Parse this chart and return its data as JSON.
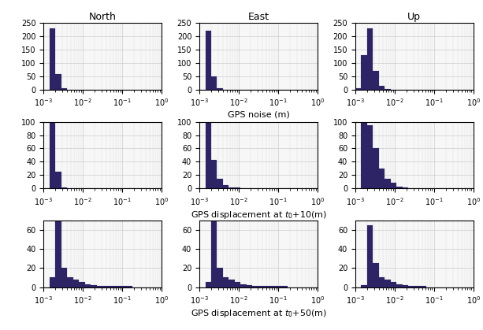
{
  "title_cols": [
    "North",
    "East",
    "Up"
  ],
  "row_xlabels": [
    "GPS noise (m)",
    "GPS displacement at $t_0$+10(m)",
    "GPS displacement at $t_0$+50(m)"
  ],
  "bar_color": "#2d2466",
  "xlim_log": [
    -3,
    0
  ],
  "rows": [
    {
      "ylim": 250,
      "yticks": [
        0,
        50,
        100,
        150,
        200,
        250
      ],
      "cols": [
        [
          0,
          230,
          60,
          5,
          1,
          0,
          0,
          0,
          0,
          0,
          0,
          0,
          0,
          0,
          0,
          0,
          0,
          0,
          0,
          0
        ],
        [
          0,
          220,
          50,
          5,
          1,
          0,
          0,
          0,
          0,
          0,
          0,
          0,
          0,
          0,
          0,
          0,
          0,
          0,
          0,
          0
        ],
        [
          5,
          130,
          230,
          70,
          15,
          3,
          1,
          0,
          0,
          0,
          0,
          0,
          0,
          0,
          0,
          0,
          0,
          0,
          0,
          0
        ]
      ]
    },
    {
      "ylim": 100,
      "yticks": [
        0,
        20,
        40,
        60,
        80,
        100
      ],
      "cols": [
        [
          0,
          100,
          25,
          2,
          0,
          0,
          0,
          0,
          0,
          0,
          0,
          0,
          0,
          0,
          0,
          0,
          0,
          0,
          0,
          0
        ],
        [
          0,
          100,
          43,
          15,
          5,
          2,
          1,
          0,
          0,
          0,
          0,
          0,
          0,
          0,
          0,
          0,
          0,
          0,
          0,
          0
        ],
        [
          0,
          100,
          95,
          60,
          30,
          15,
          8,
          3,
          1,
          0,
          0,
          0,
          0,
          0,
          0,
          0,
          0,
          0,
          0,
          0
        ]
      ]
    },
    {
      "ylim": 70,
      "yticks": [
        0,
        20,
        40,
        60
      ],
      "cols": [
        [
          0,
          10,
          70,
          20,
          10,
          8,
          5,
          3,
          2,
          1,
          1,
          1,
          1,
          1,
          1,
          0,
          0,
          0,
          0,
          0
        ],
        [
          0,
          5,
          70,
          20,
          10,
          8,
          5,
          3,
          2,
          1,
          1,
          1,
          1,
          1,
          1,
          0,
          0,
          0,
          0,
          0
        ],
        [
          0,
          2,
          65,
          25,
          10,
          8,
          5,
          3,
          2,
          1,
          1,
          1,
          0,
          0,
          0,
          0,
          0,
          0,
          0,
          0
        ]
      ]
    }
  ]
}
